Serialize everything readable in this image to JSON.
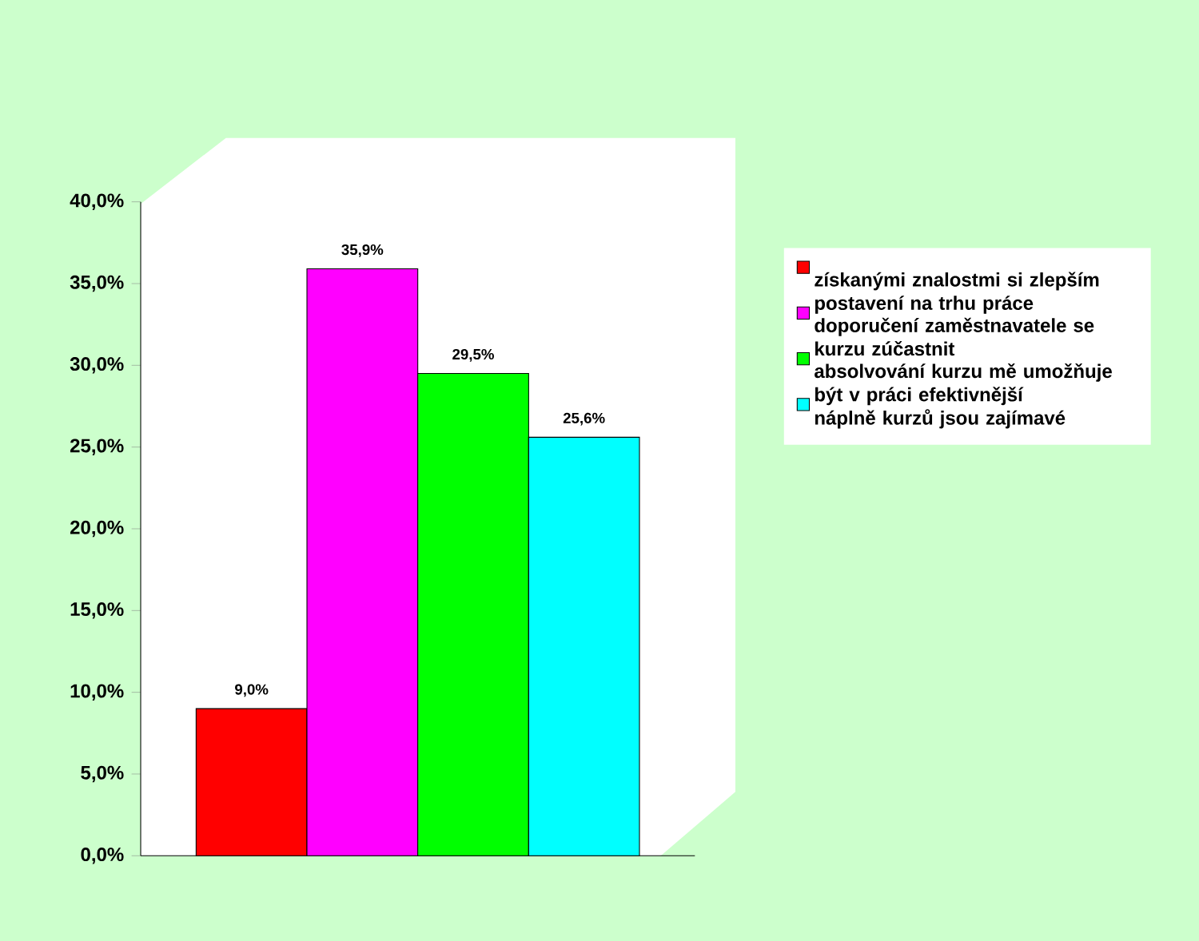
{
  "chart_data": {
    "type": "bar",
    "categories": [
      null
    ],
    "series": [
      {
        "name": "získanými znalostmi si zlepším postavení na trhu práce",
        "color": "#ff0000",
        "values": [
          9.0
        ],
        "value_labels": [
          "9,0%"
        ]
      },
      {
        "name": "doporučení zaměstnavatele se kurzu zúčastnit",
        "color": "#ff00ff",
        "values": [
          35.9
        ],
        "value_labels": [
          "35,9%"
        ]
      },
      {
        "name": "absolvování kurzu mě umožňuje být v práci efektivnější",
        "color": "#00ff00",
        "values": [
          29.5
        ],
        "value_labels": [
          "29,5%"
        ]
      },
      {
        "name": "náplně kurzů jsou zajímavé",
        "color": "#00ffff",
        "values": [
          25.6
        ],
        "value_labels": [
          "25,6%"
        ]
      }
    ],
    "ylim": [
      0,
      40
    ],
    "yticks": [
      {
        "value": 0,
        "label": "0,0%"
      },
      {
        "value": 5,
        "label": "5,0%"
      },
      {
        "value": 10,
        "label": "10,0%"
      },
      {
        "value": 15,
        "label": "15,0%"
      },
      {
        "value": 20,
        "label": "20,0%"
      },
      {
        "value": 25,
        "label": "25,0%"
      },
      {
        "value": 30,
        "label": "30,0%"
      },
      {
        "value": 35,
        "label": "35,0%"
      },
      {
        "value": 40,
        "label": "40,0%"
      }
    ],
    "legend": "right",
    "grid": false
  }
}
